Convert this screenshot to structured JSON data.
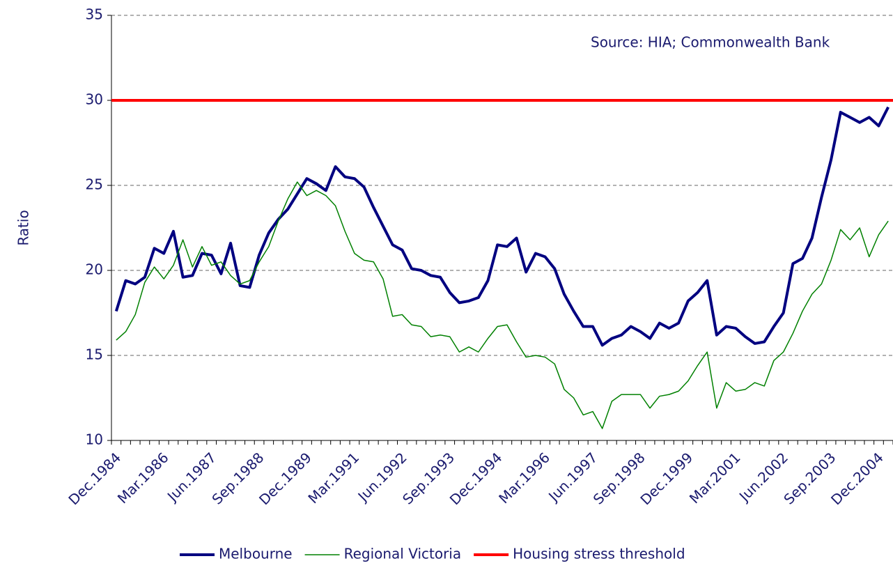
{
  "chart_data": {
    "type": "line",
    "annotation": "Source: HIA; Commonwealth Bank",
    "y_label": "Ratio",
    "categories": [
      "Dec.1984",
      null,
      null,
      null,
      null,
      "Mar.1986",
      null,
      null,
      null,
      null,
      "Jun.1987",
      null,
      null,
      null,
      null,
      "Sep.1988",
      null,
      null,
      null,
      null,
      "Dec.1989",
      null,
      null,
      null,
      null,
      "Mar.1991",
      null,
      null,
      null,
      null,
      "Jun.1992",
      null,
      null,
      null,
      null,
      "Sep.1993",
      null,
      null,
      null,
      null,
      "Dec.1994",
      null,
      null,
      null,
      null,
      "Mar.1996",
      null,
      null,
      null,
      null,
      "Jun.1997",
      null,
      null,
      null,
      null,
      "Sep.1998",
      null,
      null,
      null,
      null,
      "Dec.1999",
      null,
      null,
      null,
      null,
      "Mar.2001",
      null,
      null,
      null,
      null,
      "Jun.2002",
      null,
      null,
      null,
      null,
      "Sep.2003",
      null,
      null,
      null,
      null,
      "Dec.2004",
      null
    ],
    "series": [
      {
        "name": "Melbourne",
        "color": "#000080",
        "width": 4,
        "values": [
          17.6,
          19.4,
          19.2,
          19.6,
          21.3,
          21.0,
          22.3,
          19.6,
          19.7,
          21.0,
          20.9,
          19.8,
          21.6,
          19.1,
          19.0,
          20.9,
          22.2,
          23.0,
          23.6,
          24.5,
          25.4,
          25.1,
          24.7,
          26.1,
          25.5,
          25.4,
          24.9,
          23.7,
          22.6,
          21.5,
          21.2,
          20.1,
          20.0,
          19.7,
          19.6,
          18.7,
          18.1,
          18.2,
          18.4,
          19.4,
          21.5,
          21.4,
          21.9,
          19.9,
          21.0,
          20.8,
          20.1,
          18.6,
          17.6,
          16.7,
          16.7,
          15.6,
          16.0,
          16.2,
          16.7,
          16.4,
          16.0,
          16.9,
          16.6,
          16.9,
          18.2,
          18.7,
          19.4,
          16.2,
          16.7,
          16.6,
          16.1,
          15.7,
          15.8,
          16.7,
          17.5,
          20.4,
          20.7,
          21.9,
          24.3,
          26.5,
          29.3,
          29.0,
          28.7,
          29.0,
          28.5,
          29.6
        ]
      },
      {
        "name": "Regional Victoria",
        "color": "#008000",
        "width": 1.5,
        "values": [
          15.9,
          16.4,
          17.4,
          19.3,
          20.2,
          19.5,
          20.3,
          21.8,
          20.2,
          21.4,
          20.3,
          20.5,
          19.7,
          19.2,
          19.4,
          20.5,
          21.4,
          22.9,
          24.2,
          25.2,
          24.4,
          24.7,
          24.4,
          23.8,
          22.3,
          21.0,
          20.6,
          20.5,
          19.5,
          17.3,
          17.4,
          16.8,
          16.7,
          16.1,
          16.2,
          16.1,
          15.2,
          15.5,
          15.2,
          16.0,
          16.7,
          16.8,
          15.8,
          14.9,
          15.0,
          14.9,
          14.5,
          13.0,
          12.5,
          11.5,
          11.7,
          10.7,
          12.3,
          12.7,
          12.7,
          12.7,
          11.9,
          12.6,
          12.7,
          12.9,
          13.5,
          14.4,
          15.2,
          11.9,
          13.4,
          12.9,
          13.0,
          13.4,
          13.2,
          14.7,
          15.2,
          16.3,
          17.6,
          18.6,
          19.2,
          20.6,
          22.4,
          21.8,
          22.5,
          20.8,
          22.1,
          22.9
        ]
      }
    ],
    "reference_lines": [
      {
        "name": "Housing stress threshold",
        "color": "#ff0000",
        "width": 4,
        "value": 30
      }
    ],
    "ylim": [
      10,
      35
    ],
    "yticks": [
      10,
      15,
      20,
      25,
      30,
      35
    ],
    "grid": true
  }
}
